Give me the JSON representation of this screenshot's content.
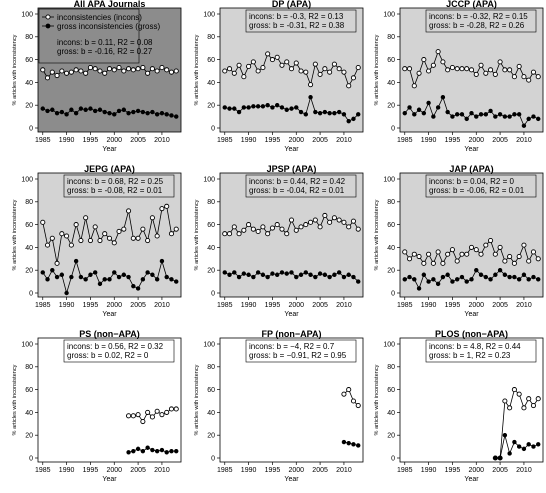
{
  "chart_data": {
    "type": "scatter",
    "xlabel": "Year",
    "ylabel": "% articles with inconsistency",
    "xlim": [
      1984,
      2014
    ],
    "ylim": [
      0,
      100
    ],
    "x_ticks": [
      1985,
      1990,
      1995,
      2000,
      2005,
      2010
    ],
    "y_ticks": [
      0,
      20,
      40,
      60,
      80,
      100
    ],
    "legend": {
      "panel": 0,
      "entries": [
        {
          "label": "inconsistencies (incons)",
          "marker": "open-circle"
        },
        {
          "label": "gross inconsistencies (gross)",
          "marker": "filled-circle"
        }
      ]
    },
    "panels": [
      {
        "title": "All APA Journals",
        "background": "#8c8c8c",
        "stat_lines": [
          "incons: b = 0.11, R2 = 0.08",
          "gross: b = -0.16, R2 = 0.27"
        ],
        "series": [
          {
            "name": "incons",
            "x": [
              1985,
              1986,
              1987,
              1988,
              1989,
              1990,
              1991,
              1992,
              1993,
              1994,
              1995,
              1996,
              1997,
              1998,
              1999,
              2000,
              2001,
              2002,
              2003,
              2004,
              2005,
              2006,
              2007,
              2008,
              2009,
              2010,
              2011,
              2012,
              2013
            ],
            "y": [
              51,
              44,
              49,
              46,
              50,
              48,
              49,
              51,
              50,
              48,
              53,
              52,
              50,
              48,
              52,
              51,
              53,
              50,
              52,
              51,
              52,
              53,
              48,
              52,
              50,
              53,
              51,
              49,
              50
            ]
          },
          {
            "name": "gross",
            "x": [
              1985,
              1986,
              1987,
              1988,
              1989,
              1990,
              1991,
              1992,
              1993,
              1994,
              1995,
              1996,
              1997,
              1998,
              1999,
              2000,
              2001,
              2002,
              2003,
              2004,
              2005,
              2006,
              2007,
              2008,
              2009,
              2010,
              2011,
              2012,
              2013
            ],
            "y": [
              17,
              15,
              16,
              13,
              14,
              12,
              16,
              13,
              17,
              16,
              17,
              15,
              16,
              14,
              13,
              12,
              15,
              16,
              13,
              14,
              15,
              14,
              13,
              14,
              12,
              13,
              12,
              11,
              10
            ]
          }
        ]
      },
      {
        "title": "DP (APA)",
        "background": "#d3d3d3",
        "stat_lines": [
          "incons: b = -0.3, R2 = 0.13",
          "gross: b = -0.31, R2 = 0.38"
        ],
        "series": [
          {
            "name": "incons",
            "x": [
              1985,
              1986,
              1987,
              1988,
              1989,
              1990,
              1991,
              1992,
              1993,
              1994,
              1995,
              1996,
              1997,
              1998,
              1999,
              2000,
              2001,
              2002,
              2003,
              2004,
              2005,
              2006,
              2007,
              2008,
              2009,
              2010,
              2011,
              2012,
              2013
            ],
            "y": [
              50,
              52,
              48,
              55,
              45,
              54,
              58,
              50,
              53,
              65,
              60,
              62,
              55,
              58,
              52,
              57,
              50,
              49,
              38,
              56,
              47,
              52,
              49,
              56,
              52,
              49,
              37,
              44,
              53
            ]
          },
          {
            "name": "gross",
            "x": [
              1985,
              1986,
              1987,
              1988,
              1989,
              1990,
              1991,
              1992,
              1993,
              1994,
              1995,
              1996,
              1997,
              1998,
              1999,
              2000,
              2001,
              2002,
              2003,
              2004,
              2005,
              2006,
              2007,
              2008,
              2009,
              2010,
              2011,
              2012,
              2013
            ],
            "y": [
              18,
              17,
              17,
              14,
              18,
              18,
              19,
              19,
              19,
              20,
              18,
              20,
              18,
              16,
              17,
              18,
              14,
              12,
              27,
              14,
              13,
              14,
              13,
              13,
              14,
              12,
              6,
              8,
              12
            ]
          }
        ]
      },
      {
        "title": "JCCP (APA)",
        "background": "#d3d3d3",
        "stat_lines": [
          "incons: b = -0.32, R2 = 0.15",
          "gross: b = -0.28, R2 = 0.26"
        ],
        "series": [
          {
            "name": "incons",
            "x": [
              1985,
              1986,
              1987,
              1988,
              1989,
              1990,
              1991,
              1992,
              1993,
              1994,
              1995,
              1996,
              1997,
              1998,
              1999,
              2000,
              2001,
              2002,
              2003,
              2004,
              2005,
              2006,
              2007,
              2008,
              2009,
              2010,
              2011,
              2012,
              2013
            ],
            "y": [
              52,
              52,
              37,
              48,
              60,
              50,
              55,
              67,
              58,
              51,
              53,
              52,
              52,
              52,
              51,
              47,
              55,
              48,
              51,
              47,
              58,
              51,
              51,
              45,
              54,
              45,
              42,
              49,
              45
            ]
          },
          {
            "name": "gross",
            "x": [
              1985,
              1986,
              1987,
              1988,
              1989,
              1990,
              1991,
              1992,
              1993,
              1994,
              1995,
              1996,
              1997,
              1998,
              1999,
              2000,
              2001,
              2002,
              2003,
              2004,
              2005,
              2006,
              2007,
              2008,
              2009,
              2010,
              2011,
              2012,
              2013
            ],
            "y": [
              13,
              18,
              12,
              16,
              13,
              22,
              10,
              18,
              27,
              14,
              10,
              12,
              12,
              8,
              13,
              10,
              12,
              12,
              15,
              10,
              12,
              10,
              10,
              12,
              12,
              2,
              8,
              10,
              8
            ]
          }
        ]
      },
      {
        "title": "JEPG (APA)",
        "background": "#d3d3d3",
        "stat_lines": [
          "incons: b = 0.68, R2 = 0.25",
          "gross: b = -0.08, R2 = 0.01"
        ],
        "series": [
          {
            "name": "incons",
            "x": [
              1985,
              1986,
              1987,
              1988,
              1989,
              1990,
              1991,
              1992,
              1993,
              1994,
              1995,
              1996,
              1997,
              1998,
              1999,
              2000,
              2001,
              2002,
              2003,
              2004,
              2005,
              2006,
              2007,
              2008,
              2009,
              2010,
              2011,
              2012,
              2013
            ],
            "y": [
              62,
              42,
              48,
              26,
              52,
              50,
              42,
              60,
              46,
              66,
              46,
              58,
              46,
              52,
              48,
              44,
              54,
              56,
              72,
              48,
              48,
              56,
              46,
              66,
              50,
              74,
              76,
              52,
              56
            ]
          },
          {
            "name": "gross",
            "x": [
              1985,
              1986,
              1987,
              1988,
              1989,
              1990,
              1991,
              1992,
              1993,
              1994,
              1995,
              1996,
              1997,
              1998,
              1999,
              2000,
              2001,
              2002,
              2003,
              2004,
              2005,
              2006,
              2007,
              2008,
              2009,
              2010,
              2011,
              2012,
              2013
            ],
            "y": [
              18,
              12,
              20,
              14,
              16,
              0,
              14,
              28,
              14,
              12,
              16,
              18,
              8,
              12,
              12,
              18,
              14,
              16,
              14,
              6,
              4,
              12,
              18,
              16,
              12,
              28,
              14,
              12,
              10
            ]
          }
        ]
      },
      {
        "title": "JPSP (APA)",
        "background": "#d3d3d3",
        "stat_lines": [
          "incons: b = 0.44, R2 = 0.42",
          "gross: b = -0.04, R2 = 0.01"
        ],
        "series": [
          {
            "name": "incons",
            "x": [
              1985,
              1986,
              1987,
              1988,
              1989,
              1990,
              1991,
              1992,
              1993,
              1994,
              1995,
              1996,
              1997,
              1998,
              1999,
              2000,
              2001,
              2002,
              2003,
              2004,
              2005,
              2006,
              2007,
              2008,
              2009,
              2010,
              2011,
              2012,
              2013
            ],
            "y": [
              52,
              52,
              58,
              52,
              55,
              60,
              56,
              54,
              58,
              52,
              57,
              60,
              56,
              52,
              64,
              55,
              58,
              60,
              62,
              64,
              58,
              68,
              62,
              66,
              64,
              62,
              58,
              63,
              56
            ]
          },
          {
            "name": "gross",
            "x": [
              1985,
              1986,
              1987,
              1988,
              1989,
              1990,
              1991,
              1992,
              1993,
              1994,
              1995,
              1996,
              1997,
              1998,
              1999,
              2000,
              2001,
              2002,
              2003,
              2004,
              2005,
              2006,
              2007,
              2008,
              2009,
              2010,
              2011,
              2012,
              2013
            ],
            "y": [
              18,
              16,
              18,
              14,
              17,
              16,
              14,
              18,
              16,
              14,
              17,
              16,
              18,
              17,
              18,
              14,
              16,
              18,
              16,
              14,
              17,
              16,
              14,
              16,
              18,
              14,
              16,
              14,
              10
            ]
          }
        ]
      },
      {
        "title": "JAP (APA)",
        "background": "#d3d3d3",
        "stat_lines": [
          "incons: b = 0.04, R2 = 0",
          "gross: b = -0.06, R2 = 0.01"
        ],
        "series": [
          {
            "name": "incons",
            "x": [
              1985,
              1986,
              1987,
              1988,
              1989,
              1990,
              1991,
              1992,
              1993,
              1994,
              1995,
              1996,
              1997,
              1998,
              1999,
              2000,
              2001,
              2002,
              2003,
              2004,
              2005,
              2006,
              2007,
              2008,
              2009,
              2010,
              2011,
              2012,
              2013
            ],
            "y": [
              36,
              30,
              34,
              32,
              26,
              34,
              26,
              36,
              26,
              34,
              38,
              28,
              34,
              34,
              40,
              38,
              34,
              42,
              46,
              34,
              40,
              28,
              32,
              26,
              32,
              42,
              28,
              36,
              30
            ]
          },
          {
            "name": "gross",
            "x": [
              1985,
              1986,
              1987,
              1988,
              1989,
              1990,
              1991,
              1992,
              1993,
              1994,
              1995,
              1996,
              1997,
              1998,
              1999,
              2000,
              2001,
              2002,
              2003,
              2004,
              2005,
              2006,
              2007,
              2008,
              2009,
              2010,
              2011,
              2012,
              2013
            ],
            "y": [
              12,
              14,
              12,
              4,
              16,
              10,
              12,
              8,
              14,
              16,
              10,
              12,
              14,
              10,
              12,
              20,
              16,
              14,
              12,
              16,
              20,
              16,
              14,
              14,
              12,
              16,
              12,
              14,
              12
            ]
          }
        ]
      },
      {
        "title": "PS (non−APA)",
        "background": "#ffffff",
        "stat_lines": [
          "incons: b = 0.56, R2 = 0.32",
          "gross: b = 0.02, R2 = 0"
        ],
        "series": [
          {
            "name": "incons",
            "x": [
              2003,
              2004,
              2005,
              2006,
              2007,
              2008,
              2009,
              2010,
              2011,
              2012,
              2013
            ],
            "y": [
              37,
              37,
              38,
              32,
              40,
              36,
              41,
              38,
              40,
              43,
              43
            ]
          },
          {
            "name": "gross",
            "x": [
              2003,
              2004,
              2005,
              2006,
              2007,
              2008,
              2009,
              2010,
              2011,
              2012,
              2013
            ],
            "y": [
              5,
              6,
              8,
              6,
              9,
              7,
              6,
              7,
              5,
              6,
              6
            ]
          }
        ]
      },
      {
        "title": "FP (non−APA)",
        "background": "#ffffff",
        "stat_lines": [
          "incons: b = −4, R2 = 0.7",
          "gross: b = −0.91, R2 = 0.95"
        ],
        "series": [
          {
            "name": "incons",
            "x": [
              2010,
              2011,
              2012,
              2013
            ],
            "y": [
              56,
              60,
              50,
              46
            ]
          },
          {
            "name": "gross",
            "x": [
              2010,
              2011,
              2012,
              2013
            ],
            "y": [
              14,
              13,
              12,
              11
            ]
          }
        ]
      },
      {
        "title": "PLOS (non−APA)",
        "background": "#ffffff",
        "stat_lines": [
          "incons: b = 4.8, R2 = 0.44",
          "gross: b = 1, R2 = 0.23"
        ],
        "series": [
          {
            "name": "incons",
            "x": [
              2004,
              2005,
              2006,
              2007,
              2008,
              2009,
              2010,
              2011,
              2012,
              2013
            ],
            "y": [
              0,
              0,
              50,
              44,
              60,
              56,
              44,
              52,
              46,
              52
            ]
          },
          {
            "name": "gross",
            "x": [
              2004,
              2005,
              2006,
              2007,
              2008,
              2009,
              2010,
              2011,
              2012,
              2013
            ],
            "y": [
              0,
              0,
              20,
              4,
              14,
              10,
              8,
              12,
              10,
              12
            ]
          }
        ]
      }
    ]
  }
}
